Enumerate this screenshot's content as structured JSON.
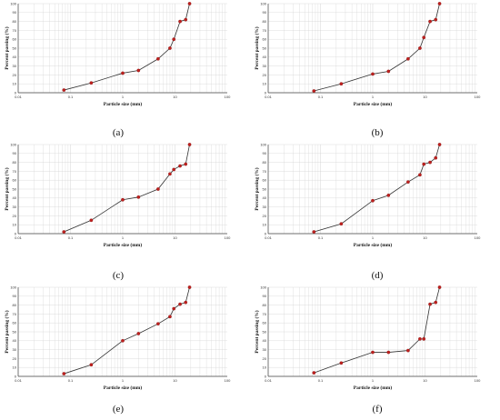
{
  "figure": {
    "captions": [
      "(a)",
      "(b)",
      "(c)",
      "(d)",
      "(e)",
      "(f)"
    ]
  },
  "colors": {
    "line": "#333333",
    "marker": "#c0201e",
    "grid": "#d4d4d4",
    "axis": "#444444"
  },
  "chart_data": [
    {
      "type": "line",
      "panel": "a",
      "xlabel": "Particle size (mm)",
      "ylabel": "Percent passing (%)",
      "x_scale": "log",
      "xlim": [
        0.01,
        100
      ],
      "ylim": [
        0,
        100
      ],
      "x_ticks": [
        "0.01",
        "0.1",
        "1",
        "10",
        "100"
      ],
      "y_ticks": [
        "0",
        "10",
        "20",
        "30",
        "40",
        "50",
        "60",
        "70",
        "80",
        "90",
        "100"
      ],
      "grid": true,
      "x": [
        0.075,
        0.25,
        1,
        2,
        4.75,
        8,
        9.5,
        12.5,
        16,
        19
      ],
      "y": [
        3,
        11,
        22,
        25,
        38,
        50,
        60,
        80,
        82,
        100
      ]
    },
    {
      "type": "line",
      "panel": "b",
      "xlabel": "Particle size (mm)",
      "ylabel": "Percent passing (%)",
      "x_scale": "log",
      "xlim": [
        0.01,
        100
      ],
      "ylim": [
        0,
        100
      ],
      "x_ticks": [
        "0.01",
        "0.1",
        "1",
        "10",
        "100"
      ],
      "y_ticks": [
        "0",
        "10",
        "20",
        "30",
        "40",
        "50",
        "60",
        "70",
        "80",
        "90",
        "100"
      ],
      "grid": true,
      "x": [
        0.075,
        0.25,
        1,
        2,
        4.75,
        8,
        9.5,
        12.5,
        16,
        19
      ],
      "y": [
        2,
        10,
        21,
        24,
        38,
        50,
        62,
        80,
        82,
        100
      ]
    },
    {
      "type": "line",
      "panel": "c",
      "xlabel": "Particle size (mm)",
      "ylabel": "Percent passing (%)",
      "x_scale": "log",
      "xlim": [
        0.01,
        100
      ],
      "ylim": [
        0,
        100
      ],
      "x_ticks": [
        "0.01",
        "0.1",
        "1",
        "10",
        "100"
      ],
      "y_ticks": [
        "0",
        "10",
        "20",
        "30",
        "40",
        "50",
        "60",
        "70",
        "80",
        "90",
        "100"
      ],
      "grid": true,
      "x": [
        0.075,
        0.25,
        1,
        2,
        4.75,
        8,
        9.5,
        12.5,
        16,
        19
      ],
      "y": [
        2,
        15,
        38,
        41,
        50,
        67,
        72,
        76,
        78,
        100
      ]
    },
    {
      "type": "line",
      "panel": "d",
      "xlabel": "Particle size (mm)",
      "ylabel": "Percent passing (%)",
      "x_scale": "log",
      "xlim": [
        0.01,
        100
      ],
      "ylim": [
        0,
        100
      ],
      "x_ticks": [
        "0.01",
        "0.1",
        "1",
        "10",
        "100"
      ],
      "y_ticks": [
        "0",
        "10",
        "20",
        "30",
        "40",
        "50",
        "60",
        "70",
        "80",
        "90",
        "100"
      ],
      "grid": true,
      "x": [
        0.075,
        0.25,
        1,
        2,
        4.75,
        8,
        9.5,
        12.5,
        16,
        19
      ],
      "y": [
        2,
        11,
        37,
        43,
        58,
        66,
        78,
        80,
        85,
        100
      ]
    },
    {
      "type": "line",
      "panel": "e",
      "xlabel": "Particle size (mm)",
      "ylabel": "Percent passing (%)",
      "x_scale": "log",
      "xlim": [
        0.01,
        100
      ],
      "ylim": [
        0,
        100
      ],
      "x_ticks": [
        "0.01",
        "0.1",
        "1",
        "10",
        "100"
      ],
      "y_ticks": [
        "0",
        "10",
        "20",
        "30",
        "40",
        "50",
        "60",
        "70",
        "80",
        "90",
        "100"
      ],
      "grid": true,
      "x": [
        0.075,
        0.25,
        1,
        2,
        4.75,
        8,
        9.5,
        12.5,
        16,
        19
      ],
      "y": [
        3,
        13,
        40,
        48,
        59,
        67,
        76,
        81,
        83,
        100
      ]
    },
    {
      "type": "line",
      "panel": "f",
      "xlabel": "Particle size (mm)",
      "ylabel": "Percent passing (%)",
      "x_scale": "log",
      "xlim": [
        0.01,
        100
      ],
      "ylim": [
        0,
        100
      ],
      "x_ticks": [
        "0.01",
        "0.1",
        "1",
        "10",
        "100"
      ],
      "y_ticks": [
        "0",
        "10",
        "20",
        "30",
        "40",
        "50",
        "60",
        "70",
        "80",
        "90",
        "100"
      ],
      "grid": true,
      "x": [
        0.075,
        0.25,
        1,
        2,
        4.75,
        8,
        9.5,
        12.5,
        16,
        19
      ],
      "y": [
        4,
        15,
        27,
        27,
        29,
        42,
        42,
        81,
        83,
        100
      ]
    }
  ]
}
